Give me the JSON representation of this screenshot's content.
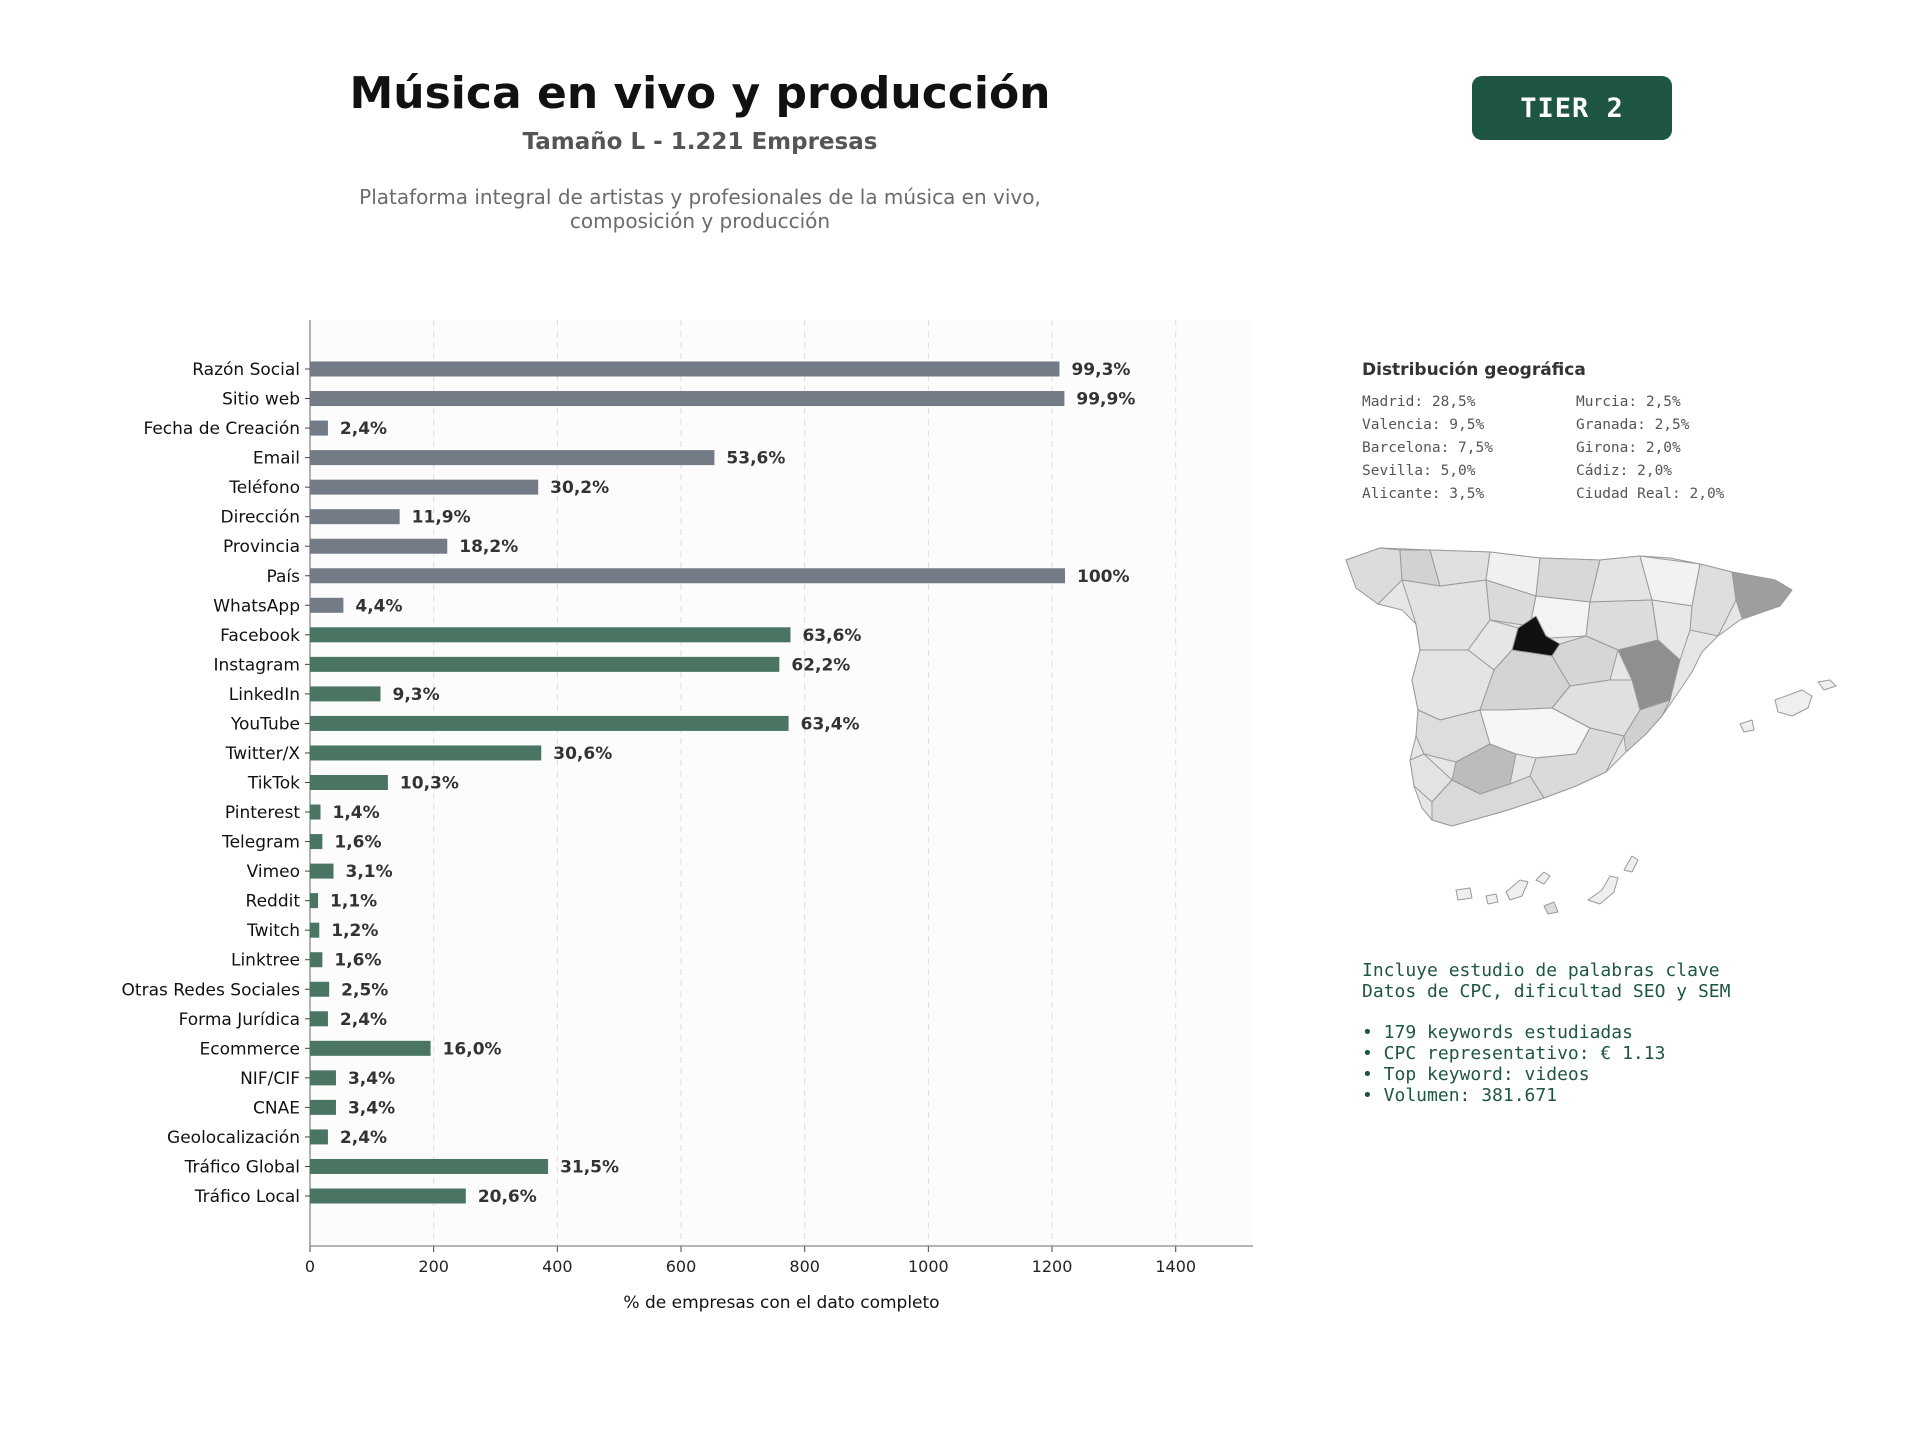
{
  "header": {
    "title": "Música en vivo y producción",
    "subtitle": "Tamaño L - 1.221 Empresas",
    "description_line1": "Plataforma integral de artistas y profesionales de la música en vivo,",
    "description_line2": "composición y producción"
  },
  "badge": {
    "label": "TIER 2"
  },
  "chart_data": {
    "type": "bar",
    "orientation": "horizontal",
    "xlabel": "% de empresas con el dato completo",
    "xlim": [
      0,
      1525
    ],
    "xticks": [
      0,
      200,
      400,
      600,
      800,
      1000,
      1200,
      1400
    ],
    "grid": "vertical dashed",
    "colors": {
      "contact": "#737b86",
      "digital": "#4a7563"
    },
    "categories": [
      "Razón Social",
      "Sitio web",
      "Fecha de Creación",
      "Email",
      "Teléfono",
      "Dirección",
      "Provincia",
      "País",
      "WhatsApp",
      "Facebook",
      "Instagram",
      "LinkedIn",
      "YouTube",
      "Twitter/X",
      "TikTok",
      "Pinterest",
      "Telegram",
      "Vimeo",
      "Reddit",
      "Twitch",
      "Linktree",
      "Otras Redes Sociales",
      "Forma Jurídica",
      "Ecommerce",
      "NIF/CIF",
      "CNAE",
      "Geolocalización",
      "Tráfico Global",
      "Tráfico Local"
    ],
    "values": [
      1212,
      1220,
      29,
      654,
      369,
      145,
      222,
      1221,
      54,
      777,
      759,
      114,
      774,
      374,
      126,
      17,
      20,
      38,
      13,
      15,
      20,
      31,
      29,
      195,
      42,
      42,
      29,
      385,
      252
    ],
    "labels": [
      "99,3%",
      "99,9%",
      "2,4%",
      "53,6%",
      "30,2%",
      "11,9%",
      "18,2%",
      "100%",
      "4,4%",
      "63,6%",
      "62,2%",
      "9,3%",
      "63,4%",
      "30,6%",
      "10,3%",
      "1,4%",
      "1,6%",
      "3,1%",
      "1,1%",
      "1,2%",
      "1,6%",
      "2,5%",
      "2,4%",
      "16,0%",
      "3,4%",
      "3,4%",
      "2,4%",
      "31,5%",
      "20,6%"
    ],
    "color_groups": [
      "contact",
      "contact",
      "contact",
      "contact",
      "contact",
      "contact",
      "contact",
      "contact",
      "contact",
      "digital",
      "digital",
      "digital",
      "digital",
      "digital",
      "digital",
      "digital",
      "digital",
      "digital",
      "digital",
      "digital",
      "digital",
      "digital",
      "digital",
      "digital",
      "digital",
      "digital",
      "digital",
      "digital",
      "digital"
    ]
  },
  "geo": {
    "title": "Distribución geográfica",
    "column_left": [
      "Madrid: 28,5%",
      "Valencia: 9,5%",
      "Barcelona: 7,5%",
      "Sevilla: 5,0%",
      "Alicante: 3,5%"
    ],
    "column_right": [
      "Murcia: 2,5%",
      "Granada: 2,5%",
      "Girona: 2,0%",
      "Cádiz: 2,0%",
      "Ciudad Real: 2,0%"
    ]
  },
  "keywords": {
    "line1": "Incluye estudio de palabras clave",
    "line2": "Datos de CPC, dificultad SEO y SEM",
    "bullets": [
      "• 179 keywords estudiadas",
      "• CPC representativo: € 1.13",
      "• Top keyword: videos",
      "• Volumen: 381.671"
    ]
  }
}
